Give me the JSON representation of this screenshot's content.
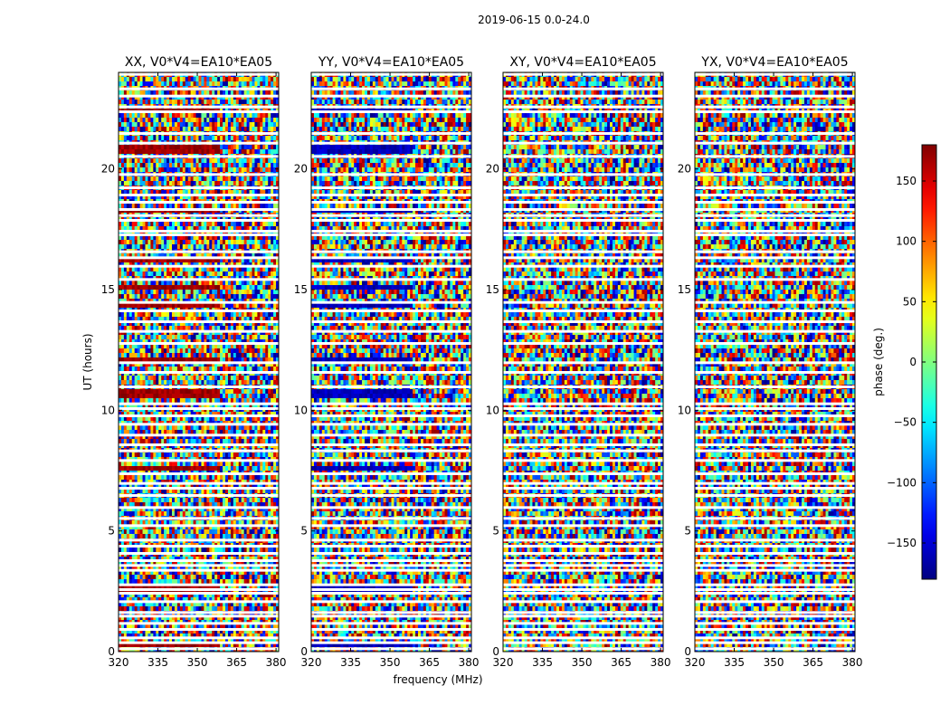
{
  "title": "2019-06-15 0.0-24.0",
  "chart_data": {
    "type": "heatmap",
    "title": "2019-06-15 0.0-24.0",
    "xlabel": "frequency (MHz)",
    "ylabel": "UT (hours)",
    "xlim": [
      320,
      381
    ],
    "ylim": [
      0,
      24
    ],
    "xticks": [
      320,
      335,
      350,
      365,
      380
    ],
    "yticks": [
      0,
      5,
      10,
      15,
      20
    ],
    "panels": [
      {
        "title": "XX, V0*V4=EA10*EA05",
        "corr": "XX",
        "band_phase": 170
      },
      {
        "title": "YY, V0*V4=EA10*EA05",
        "corr": "YY",
        "band_phase": -160
      },
      {
        "title": "XY, V0*V4=EA10*EA05",
        "corr": "XY",
        "band_phase": null
      },
      {
        "title": "YX, V0*V4=EA10*EA05",
        "corr": "YX",
        "band_phase": null
      }
    ],
    "colorbar": {
      "label": "phase (deg.)",
      "range": [
        -180,
        180
      ],
      "ticks": [
        -150,
        -100,
        -50,
        0,
        50,
        100,
        150
      ],
      "tick_labels": [
        "−150",
        "−100",
        "−50",
        "0",
        "50",
        "100",
        "150"
      ],
      "colormap": "jet"
    },
    "flagged_ut_hours": [
      0.1,
      0.35,
      0.55,
      0.9,
      1.15,
      1.45,
      1.6,
      2.05,
      2.4,
      2.55,
      2.75,
      3.35,
      3.55,
      3.75,
      4.05,
      4.35,
      4.6,
      5.2,
      5.5,
      5.95,
      6.45,
      6.75,
      6.95,
      7.35,
      7.9,
      8.3,
      8.55,
      8.95,
      9.4,
      9.75,
      10.05,
      10.25,
      10.95,
      11.55,
      11.95,
      12.75,
      13.25,
      13.65,
      14.1,
      14.45,
      15.4,
      15.95,
      16.3,
      16.55,
      17.25,
      17.4,
      17.85,
      18.05,
      18.3,
      18.6,
      18.9,
      19.2,
      19.75,
      20.5,
      21.05,
      21.45,
      22.35,
      22.55,
      23.0,
      23.3,
      23.9
    ],
    "red_band_ut_hours": [
      0.3,
      2.6,
      7.6,
      10.7,
      12.1,
      14.4,
      15.1,
      16.2,
      18.3,
      20.8,
      22.4
    ]
  }
}
